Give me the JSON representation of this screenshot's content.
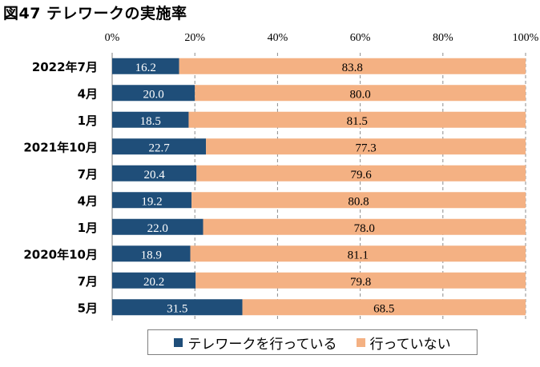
{
  "chart_data": {
    "type": "bar",
    "orientation": "horizontal",
    "stacked": true,
    "percent_stacked": true,
    "title": "図47 テレワークの実施率",
    "categories": [
      "2022年7月",
      "4月",
      "1月",
      "2021年10月",
      "7月",
      "4月",
      "1月",
      "2020年10月",
      "7月",
      "5月"
    ],
    "series": [
      {
        "name": "テレワークを行っている",
        "color": "#1f4e79",
        "values": [
          16.2,
          20.0,
          18.5,
          22.7,
          20.4,
          19.2,
          22.0,
          18.9,
          20.2,
          31.5
        ]
      },
      {
        "name": "行っていない",
        "color": "#f4b183",
        "values": [
          83.8,
          80.0,
          81.5,
          77.3,
          79.6,
          80.8,
          78.0,
          81.1,
          79.8,
          68.5
        ]
      }
    ],
    "value_labels": [
      [
        "16.2",
        "20.0",
        "18.5",
        "22.7",
        "20.4",
        "19.2",
        "22.0",
        "18.9",
        "20.2",
        "31.5"
      ],
      [
        "83.8",
        "80.0",
        "81.5",
        "77.3",
        "79.6",
        "80.8",
        "78.0",
        "81.1",
        "79.8",
        "68.5"
      ]
    ],
    "xlim": [
      0,
      100
    ],
    "x_ticks": [
      "0%",
      "20%",
      "40%",
      "60%",
      "80%",
      "100%"
    ],
    "grid": true,
    "gridline_style": "dashed",
    "legend_position": "bottom"
  }
}
